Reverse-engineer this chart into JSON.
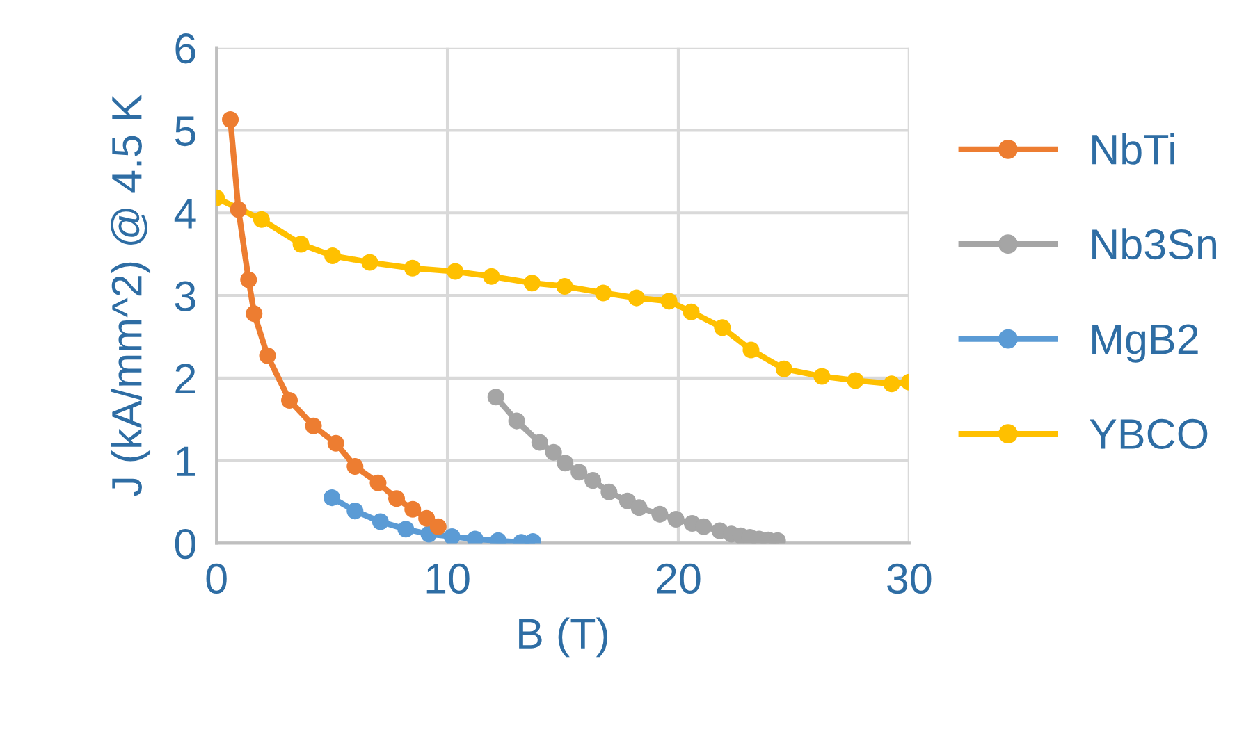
{
  "chart_data": {
    "type": "line",
    "xlabel": "B (T)",
    "ylabel": "J (kA/mm^2) @ 4.5 K",
    "xlim": [
      0,
      30
    ],
    "ylim": [
      0,
      6
    ],
    "xticks": [
      0,
      10,
      20,
      30
    ],
    "yticks": [
      0,
      1,
      2,
      3,
      4,
      5,
      6
    ],
    "grid": true,
    "legend": "right",
    "marker": "circle",
    "line_style": "solid",
    "series": [
      {
        "name": "NbTi",
        "color": "#ed7d31",
        "x": [
          0.6,
          0.95,
          1.39,
          1.63,
          2.21,
          3.16,
          4.2,
          5.17,
          6.0,
          7.0,
          7.8,
          8.5,
          9.1,
          9.6
        ],
        "values": [
          5.13,
          4.04,
          3.19,
          2.78,
          2.27,
          1.73,
          1.42,
          1.21,
          0.93,
          0.73,
          0.54,
          0.41,
          0.3,
          0.2
        ]
      },
      {
        "name": "Nb3Sn",
        "color": "#a5a5a5",
        "x": [
          12.1,
          13.0,
          14.0,
          14.6,
          15.1,
          15.7,
          16.3,
          17.0,
          17.8,
          18.3,
          19.2,
          19.9,
          20.6,
          21.1,
          21.8,
          22.3,
          22.7,
          23.1,
          23.5,
          23.9,
          24.3
        ],
        "values": [
          1.77,
          1.48,
          1.22,
          1.1,
          0.97,
          0.86,
          0.76,
          0.62,
          0.51,
          0.43,
          0.35,
          0.29,
          0.24,
          0.2,
          0.15,
          0.11,
          0.09,
          0.07,
          0.05,
          0.04,
          0.03
        ]
      },
      {
        "name": "MgB2",
        "color": "#5b9bd5",
        "x": [
          5.0,
          6.0,
          7.1,
          8.2,
          9.2,
          10.2,
          11.2,
          12.2,
          13.2,
          13.7
        ],
        "values": [
          0.55,
          0.39,
          0.26,
          0.17,
          0.11,
          0.08,
          0.05,
          0.03,
          0.01,
          0.02
        ]
      },
      {
        "name": "YBCO",
        "color": "#ffc000",
        "x": [
          0,
          1.95,
          3.66,
          5.03,
          6.64,
          8.49,
          10.34,
          11.91,
          13.67,
          15.08,
          16.75,
          18.19,
          19.6,
          20.56,
          21.91,
          23.15,
          24.58,
          26.22,
          27.67,
          29.24,
          30
        ],
        "values": [
          4.18,
          3.92,
          3.62,
          3.48,
          3.4,
          3.33,
          3.29,
          3.23,
          3.15,
          3.11,
          3.03,
          2.97,
          2.93,
          2.8,
          2.61,
          2.34,
          2.11,
          2.02,
          1.97,
          1.93,
          1.95
        ]
      }
    ]
  }
}
